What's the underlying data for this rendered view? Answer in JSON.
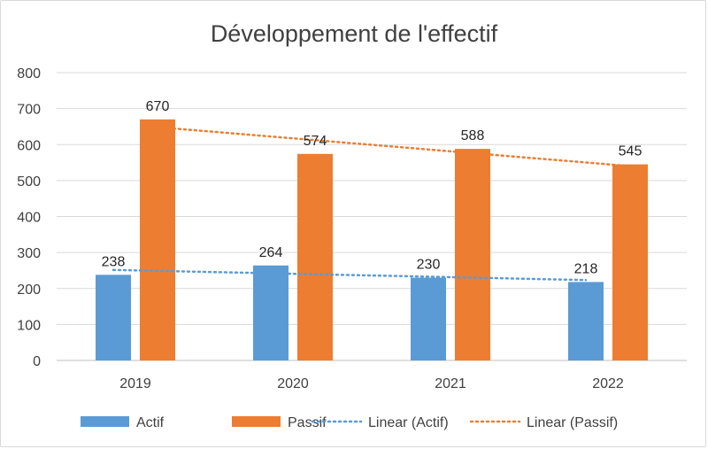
{
  "chart_data": {
    "type": "bar",
    "title": "Développement de l'effectif",
    "categories": [
      "2019",
      "2020",
      "2021",
      "2022"
    ],
    "series": [
      {
        "name": "Actif",
        "values": [
          238,
          264,
          230,
          218
        ],
        "color": "#5B9BD5"
      },
      {
        "name": "Passif",
        "values": [
          670,
          574,
          588,
          545
        ],
        "color": "#ED7D31"
      }
    ],
    "trendlines": [
      {
        "name": "Linear (Actif)",
        "series": "Actif",
        "type": "linear",
        "style": "dotted",
        "color": "#5B9BD5"
      },
      {
        "name": "Linear (Passif)",
        "series": "Passif",
        "type": "linear",
        "style": "dotted",
        "color": "#ED7D31"
      }
    ],
    "ylim": [
      0,
      800
    ],
    "yticks": [
      0,
      100,
      200,
      300,
      400,
      500,
      600,
      700,
      800
    ],
    "grid": true,
    "legend": "bottom",
    "data_labels": true
  }
}
